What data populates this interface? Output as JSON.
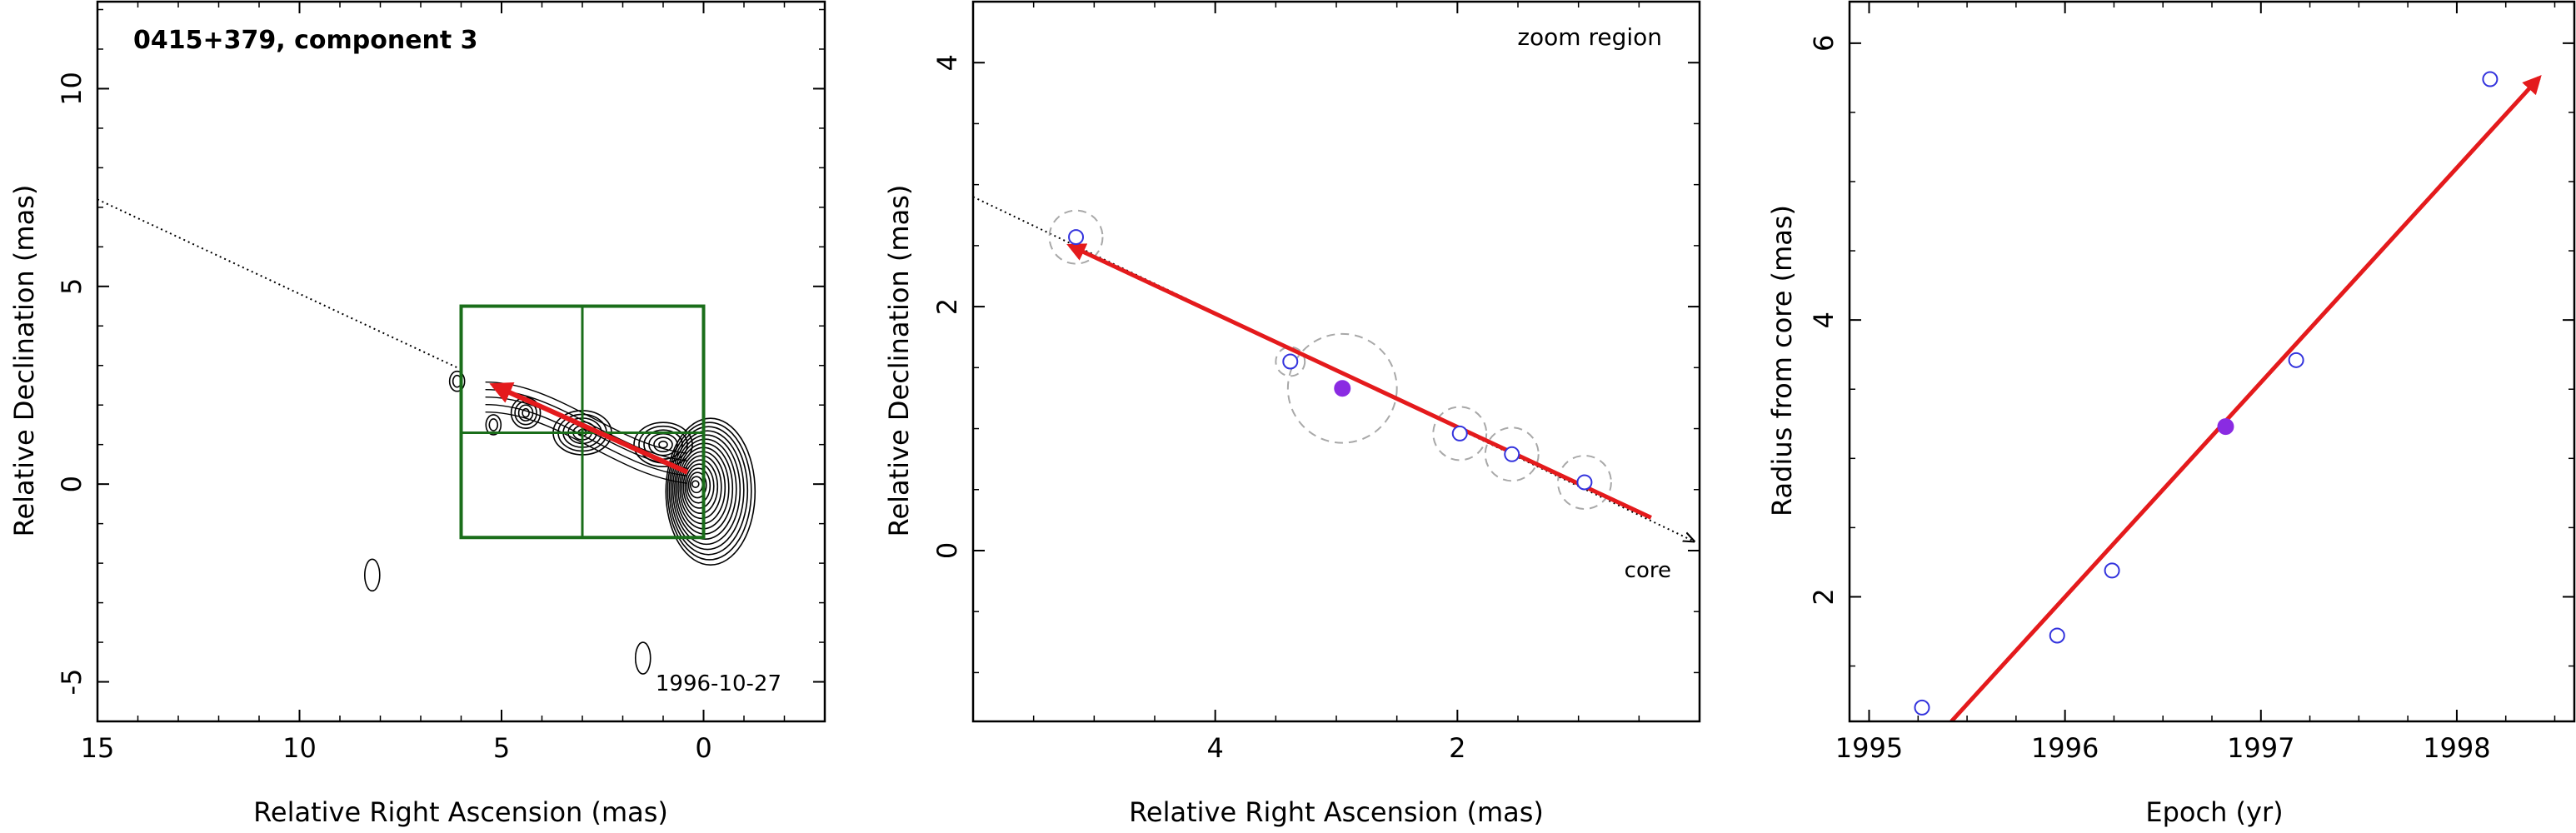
{
  "colors": {
    "frame": "#000000",
    "arrow": "#e41a1c",
    "box": "#1a6e1a",
    "open_marker": "#3333dd",
    "filled_marker": "#8a2be2",
    "dashed_circle": "#a8a8a8",
    "contour": "#000000"
  },
  "chart_data": [
    {
      "type": "contour",
      "title": "0415+379, component 3",
      "date_label": "1996-10-27",
      "xlabel": "Relative Right Ascension (mas)",
      "ylabel": "Relative Declination (mas)",
      "xlim": [
        15,
        -3
      ],
      "ylim": [
        -6,
        12.2
      ],
      "x_ticks": [
        15,
        10,
        5,
        0
      ],
      "y_ticks": [
        -5,
        0,
        5,
        10
      ],
      "trajectory_line": {
        "from": [
          15,
          7.2
        ],
        "to": [
          6,
          2.9
        ]
      },
      "motion_arrow": {
        "from": [
          0.4,
          0.3
        ],
        "to": [
          5.2,
          2.5
        ]
      },
      "zoom_box": {
        "ra": [
          0,
          6
        ],
        "dec": [
          -1.35,
          4.5
        ],
        "grid_ra": 3,
        "grid_dec": 1.3
      },
      "features": [
        {
          "ra": 0.2,
          "dec": 0.0,
          "size": "core"
        },
        {
          "ra": 1.0,
          "dec": 1.0,
          "size": "large"
        },
        {
          "ra": 3.0,
          "dec": 1.3,
          "size": "large"
        },
        {
          "ra": 4.4,
          "dec": 1.8,
          "size": "medium"
        },
        {
          "ra": 5.2,
          "dec": 1.5,
          "size": "small"
        },
        {
          "ra": 6.1,
          "dec": 2.6,
          "size": "small"
        },
        {
          "ra": 8.2,
          "dec": -2.3,
          "size": "isolated"
        },
        {
          "ra": 1.5,
          "dec": -4.4,
          "size": "isolated"
        }
      ]
    },
    {
      "type": "scatter",
      "annotation": "zoom region",
      "core_label": "core",
      "xlabel": "Relative Right Ascension (mas)",
      "ylabel": "Relative Declination (mas)",
      "xlim": [
        6.0,
        0.0
      ],
      "ylim": [
        -1.4,
        4.5
      ],
      "x_ticks": [
        4,
        2
      ],
      "y_ticks": [
        0,
        2,
        4
      ],
      "trajectory_line": {
        "from": [
          6.0,
          2.9
        ],
        "to": [
          0.0,
          0.08
        ]
      },
      "motion_arrow": {
        "from": [
          0.4,
          0.27
        ],
        "to": [
          5.2,
          2.5
        ]
      },
      "points": [
        {
          "ra": 5.15,
          "dec": 2.57,
          "err": 0.22,
          "filled": false
        },
        {
          "ra": 3.38,
          "dec": 1.55,
          "err": 0.12,
          "filled": false
        },
        {
          "ra": 2.95,
          "dec": 1.33,
          "err": 0.45,
          "filled": true
        },
        {
          "ra": 1.98,
          "dec": 0.96,
          "err": 0.22,
          "filled": false
        },
        {
          "ra": 1.55,
          "dec": 0.79,
          "err": 0.22,
          "filled": false
        },
        {
          "ra": 0.95,
          "dec": 0.56,
          "err": 0.22,
          "filled": false
        }
      ]
    },
    {
      "type": "scatter",
      "xlabel": "Epoch (yr)",
      "ylabel": "Radius from core (mas)",
      "xlim": [
        1994.9,
        1998.6
      ],
      "ylim": [
        1.1,
        6.3
      ],
      "x_ticks": [
        1995,
        1996,
        1997,
        1998
      ],
      "y_ticks": [
        2,
        4,
        6
      ],
      "fit_line": {
        "from": [
          1995.42,
          1.1
        ],
        "to": [
          1998.42,
          5.75
        ]
      },
      "points": [
        {
          "epoch": 1995.27,
          "r": 1.2,
          "filled": false
        },
        {
          "epoch": 1995.96,
          "r": 1.72,
          "filled": false
        },
        {
          "epoch": 1996.24,
          "r": 2.19,
          "filled": false
        },
        {
          "epoch": 1996.82,
          "r": 3.23,
          "filled": true
        },
        {
          "epoch": 1997.18,
          "r": 3.71,
          "filled": false
        },
        {
          "epoch": 1998.17,
          "r": 5.74,
          "filled": false
        }
      ]
    }
  ]
}
